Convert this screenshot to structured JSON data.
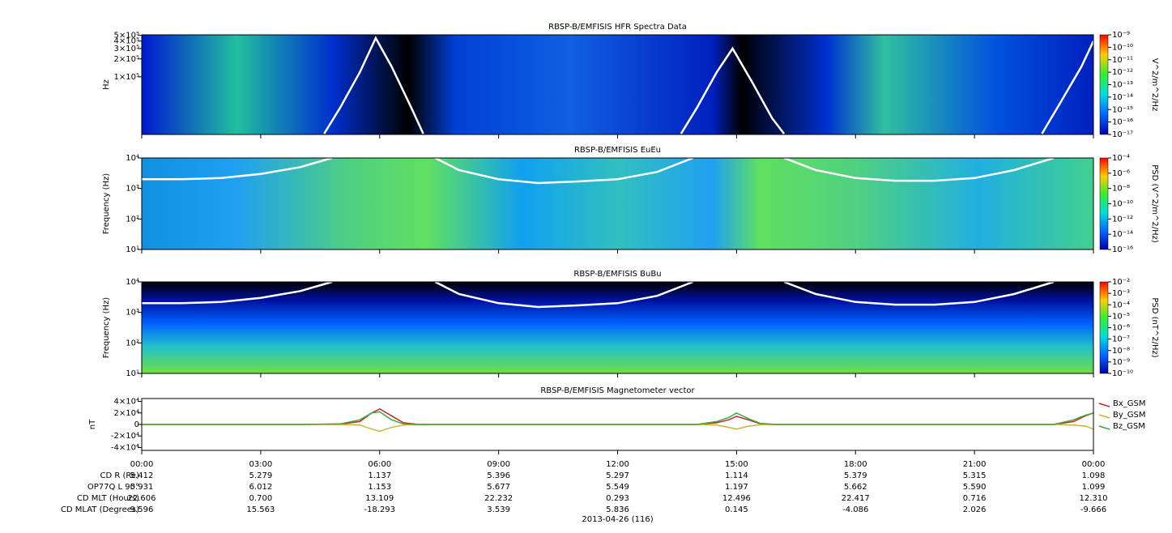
{
  "chart_data": [
    {
      "type": "spectrogram",
      "title": "RBSP-B/EMFISIS  HFR Spectra Data",
      "ylabel": "Hz",
      "yscale": "log",
      "xlim": [
        0,
        24
      ],
      "ylim": [
        10700,
        510000
      ],
      "yticks": [
        {
          "value": 100000,
          "label": "1×10⁵"
        },
        {
          "value": 200000,
          "label": "2×10⁵"
        },
        {
          "value": 300000,
          "label": "3×10⁵"
        },
        {
          "value": 400000,
          "label": "4×10⁵"
        },
        {
          "value": 500000,
          "label": "5×10⁵"
        }
      ],
      "clim": [
        1e-17,
        1e-09
      ],
      "clabel": "V^2/m^2/Hz",
      "cticks": [
        {
          "value": 1e-09,
          "label": "10⁻⁹"
        },
        {
          "value": 1e-10,
          "label": "10⁻¹⁰"
        },
        {
          "value": 1e-11,
          "label": "10⁻¹¹"
        },
        {
          "value": 1e-12,
          "label": "10⁻¹²"
        },
        {
          "value": 1e-13,
          "label": "10⁻¹³"
        },
        {
          "value": 1e-14,
          "label": "10⁻¹⁴"
        },
        {
          "value": 1e-15,
          "label": "10⁻¹⁵"
        },
        {
          "value": 1e-16,
          "label": "10⁻¹⁶"
        },
        {
          "value": 1e-17,
          "label": "10⁻¹⁷"
        }
      ],
      "series": [
        {
          "color": "#ffffff",
          "x": [
            4.6,
            5.0,
            5.5,
            5.9,
            6.3,
            6.8,
            7.1,
            null,
            13.6,
            14.0,
            14.5,
            14.9,
            15.4,
            15.9,
            16.2,
            null,
            22.7,
            23.2,
            23.7,
            24
          ],
          "values": [
            11000,
            30000,
            120000,
            450000,
            150000,
            30000,
            11000,
            null,
            11000,
            30000,
            120000,
            300000,
            80000,
            20000,
            11000,
            null,
            11000,
            40000,
            150000,
            400000
          ]
        }
      ]
    },
    {
      "type": "spectrogram",
      "title": "RBSP-B/EMFISIS  EuEu",
      "ylabel": "Frequency (Hz)",
      "yscale": "log",
      "xlim": [
        0,
        24
      ],
      "ylim": [
        10,
        10000
      ],
      "yticks": [
        {
          "value": 10,
          "label": "10¹"
        },
        {
          "value": 100,
          "label": "10²"
        },
        {
          "value": 1000,
          "label": "10³"
        },
        {
          "value": 10000,
          "label": "10⁴"
        }
      ],
      "clim": [
        1e-16,
        0.0001
      ],
      "clabel": "PSD (V^2/m^2/Hz)",
      "cticks": [
        {
          "value": 0.0001,
          "label": "10⁻⁴"
        },
        {
          "value": 1e-06,
          "label": "10⁻⁶"
        },
        {
          "value": 1e-08,
          "label": "10⁻⁸"
        },
        {
          "value": 1e-10,
          "label": "10⁻¹⁰"
        },
        {
          "value": 1e-12,
          "label": "10⁻¹²"
        },
        {
          "value": 1e-14,
          "label": "10⁻¹⁴"
        },
        {
          "value": 1e-16,
          "label": "10⁻¹⁶"
        }
      ],
      "series": [
        {
          "color": "#ffffff",
          "x": [
            0,
            1,
            2,
            3,
            4,
            4.8,
            null,
            7.4,
            8,
            9,
            10,
            11,
            12,
            13,
            13.9,
            null,
            16.2,
            17,
            18,
            19,
            20,
            21,
            22,
            23
          ],
          "values": [
            2000,
            2000,
            2200,
            3000,
            5000,
            10000,
            null,
            10000,
            4000,
            2000,
            1500,
            1700,
            2000,
            3500,
            10000,
            null,
            10000,
            4000,
            2200,
            1800,
            1800,
            2200,
            4000,
            10000
          ]
        }
      ]
    },
    {
      "type": "spectrogram",
      "title": "RBSP-B/EMFISIS  BuBu",
      "ylabel": "Frequency (Hz)",
      "yscale": "log",
      "xlim": [
        0,
        24
      ],
      "ylim": [
        10,
        10000
      ],
      "yticks": [
        {
          "value": 10,
          "label": "10¹"
        },
        {
          "value": 100,
          "label": "10²"
        },
        {
          "value": 1000,
          "label": "10³"
        },
        {
          "value": 10000,
          "label": "10⁴"
        }
      ],
      "clim": [
        1e-10,
        0.01
      ],
      "clabel": "PSD (nT^2/Hz)",
      "cticks": [
        {
          "value": 0.01,
          "label": "10⁻²"
        },
        {
          "value": 0.001,
          "label": "10⁻³"
        },
        {
          "value": 0.0001,
          "label": "10⁻⁴"
        },
        {
          "value": 1e-05,
          "label": "10⁻⁵"
        },
        {
          "value": 1e-06,
          "label": "10⁻⁶"
        },
        {
          "value": 1e-07,
          "label": "10⁻⁷"
        },
        {
          "value": 1e-08,
          "label": "10⁻⁸"
        },
        {
          "value": 1e-09,
          "label": "10⁻⁹"
        },
        {
          "value": 1e-10,
          "label": "10⁻¹⁰"
        }
      ],
      "series": [
        {
          "color": "#ffffff",
          "x": [
            0,
            1,
            2,
            3,
            4,
            4.8,
            null,
            7.4,
            8,
            9,
            10,
            11,
            12,
            13,
            13.9,
            null,
            16.2,
            17,
            18,
            19,
            20,
            21,
            22,
            23
          ],
          "values": [
            2000,
            2000,
            2200,
            3000,
            5000,
            10000,
            null,
            10000,
            4000,
            2000,
            1500,
            1700,
            2000,
            3500,
            10000,
            null,
            10000,
            4000,
            2200,
            1800,
            1800,
            2200,
            4000,
            10000
          ]
        }
      ]
    },
    {
      "type": "line",
      "title": "RBSP-B/EMFISIS  Magnetometer vector",
      "ylabel": "nT",
      "xlim": [
        0,
        24
      ],
      "ylim": [
        -45000,
        45000
      ],
      "yticks": [
        {
          "value": -40000,
          "label": "-4×10⁴"
        },
        {
          "value": -20000,
          "label": "-2×10⁴"
        },
        0,
        {
          "value": 20000,
          "label": "2×10⁴"
        },
        {
          "value": 40000,
          "label": "4×10⁴"
        }
      ],
      "xticks": [
        {
          "value": 0,
          "label": "00:00"
        },
        {
          "value": 3,
          "label": "03:00"
        },
        {
          "value": 6,
          "label": "06:00"
        },
        {
          "value": 9,
          "label": "09:00"
        },
        {
          "value": 12,
          "label": "12:00"
        },
        {
          "value": 15,
          "label": "15:00"
        },
        {
          "value": 18,
          "label": "18:00"
        },
        {
          "value": 21,
          "label": "21:00"
        },
        {
          "value": 24,
          "label": "00:00"
        }
      ],
      "x": [
        0,
        4,
        5,
        5.5,
        5.8,
        6,
        6.3,
        6.6,
        7,
        8,
        12,
        14,
        14.5,
        14.8,
        15,
        15.3,
        15.6,
        16,
        17,
        20,
        23,
        23.5,
        23.8,
        24
      ],
      "series": [
        {
          "name": "Bx_GSM",
          "color": "#c0282a",
          "values": [
            0,
            0,
            500,
            5000,
            20000,
            27000,
            15000,
            3000,
            0,
            0,
            0,
            0,
            3000,
            8000,
            14000,
            8000,
            1000,
            0,
            0,
            0,
            0,
            5000,
            15000,
            20000
          ]
        },
        {
          "name": "By_GSM",
          "color": "#c8b43c",
          "values": [
            0,
            0,
            -200,
            -1000,
            -8000,
            -12000,
            -5000,
            -1000,
            0,
            0,
            0,
            0,
            -1000,
            -5000,
            -8000,
            -3000,
            -500,
            0,
            0,
            0,
            0,
            -1000,
            -3000,
            -8000
          ]
        },
        {
          "name": "Bz_GSM",
          "color": "#3caa3c",
          "values": [
            0,
            0,
            1000,
            8000,
            20000,
            22000,
            8000,
            1000,
            0,
            0,
            0,
            0,
            5000,
            12000,
            20000,
            10000,
            2000,
            0,
            0,
            0,
            0,
            8000,
            16000,
            20000
          ]
        }
      ]
    }
  ],
  "ephemeris": {
    "rows": [
      {
        "label": "CD R (Re)",
        "values": [
          "5.412",
          "5.279",
          "1.137",
          "5.396",
          "5.297",
          "1.114",
          "5.379",
          "5.315",
          "1.098"
        ]
      },
      {
        "label": "OP77Q L 90°",
        "values": [
          "5.931",
          "6.012",
          "1.153",
          "5.677",
          "5.549",
          "1.197",
          "5.662",
          "5.590",
          "1.099"
        ]
      },
      {
        "label": "CD MLT (Hours)",
        "values": [
          "22.606",
          "0.700",
          "13.109",
          "22.232",
          "0.293",
          "12.496",
          "22.417",
          "0.716",
          "12.310"
        ]
      },
      {
        "label": "CD MLAT (Degrees)",
        "values": [
          "9.596",
          "15.563",
          "-18.293",
          "3.539",
          "5.836",
          "0.145",
          "-4.086",
          "2.026",
          "-9.666"
        ]
      }
    ],
    "date": "2013-04-26 (116)"
  }
}
